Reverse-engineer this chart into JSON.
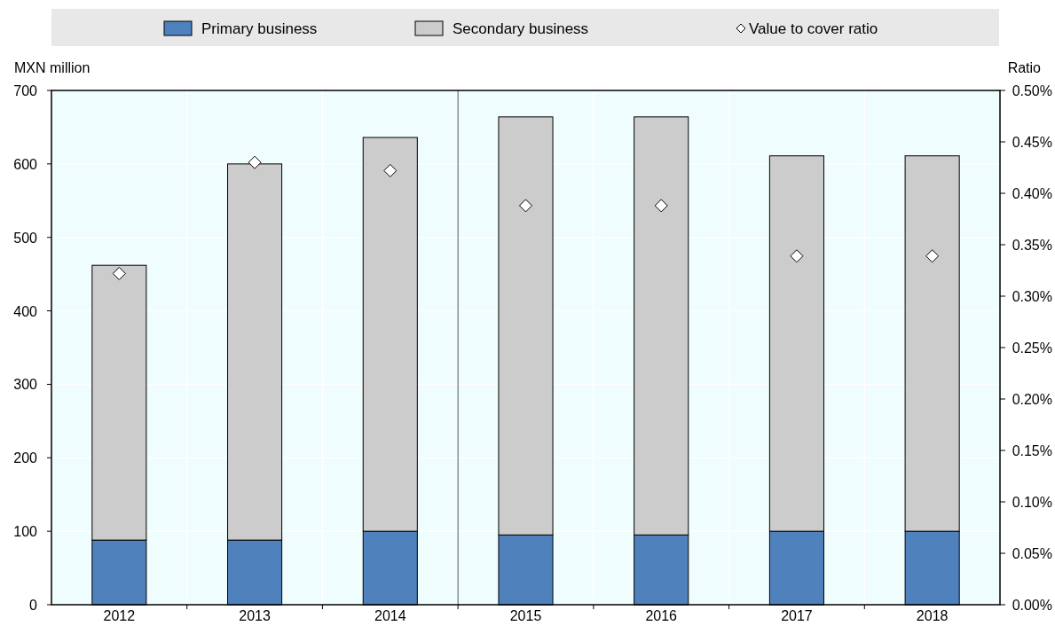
{
  "chart_data": {
    "type": "bar",
    "stacked": true,
    "x": [
      2012,
      2013,
      2014,
      2015,
      2016,
      2017,
      2018
    ],
    "xlim": [
      2011.5,
      2018.5
    ],
    "xticks": [
      2012,
      2013,
      2014,
      2015,
      2016,
      2017,
      2018
    ],
    "ylabel": "MXN million",
    "y2label": "Ratio",
    "ylim": [
      0,
      700
    ],
    "yticks": [
      0,
      100,
      200,
      300,
      400,
      500,
      600,
      700
    ],
    "y2lim": [
      0,
      0.5
    ],
    "y2ticks": [
      {
        "value": 0,
        "label": "0.00%"
      },
      {
        "value": 0.05,
        "label": "0.05%"
      },
      {
        "value": 0.1,
        "label": "0.10%"
      },
      {
        "value": 0.15,
        "label": "0.15%"
      },
      {
        "value": 0.2,
        "label": "0.20%"
      },
      {
        "value": 0.25,
        "label": "0.25%"
      },
      {
        "value": 0.3,
        "label": "0.30%"
      },
      {
        "value": 0.35,
        "label": "0.35%"
      },
      {
        "value": 0.4,
        "label": "0.40%"
      },
      {
        "value": 0.45,
        "label": "0.45%"
      },
      {
        "value": 0.5,
        "label": "0.50%"
      }
    ],
    "series": [
      {
        "name": "Primary business",
        "color": "#4f81bd",
        "values": [
          88,
          88,
          100,
          95,
          95,
          100,
          100
        ]
      },
      {
        "name": "Secondary business",
        "color": "#cccccc",
        "values": [
          374,
          512,
          536,
          569,
          569,
          511,
          511
        ]
      },
      {
        "name": "Value to cover ratio",
        "type": "scatter",
        "axis": "y2",
        "marker": "diamond",
        "color": "#ffffff",
        "values": [
          0.322,
          0.43,
          0.422,
          0.388,
          0.388,
          0.339,
          0.339
        ]
      }
    ],
    "ref_lines": [
      {
        "axis": "x",
        "value": 2014.5,
        "label": null,
        "color": "#555555"
      }
    ],
    "grid": true,
    "legend": "top"
  }
}
